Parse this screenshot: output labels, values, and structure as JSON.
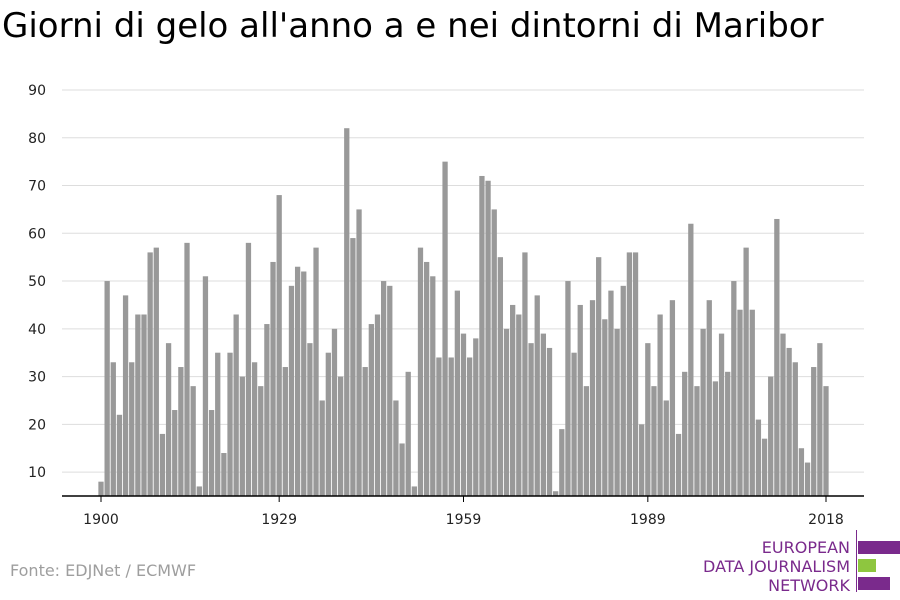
{
  "title": "Giorni di gelo all'anno a e nei dintorni di Maribor",
  "source": "Fonte: EDJNet / ECMWF",
  "logo": {
    "lines": [
      "EUROPEAN",
      "DATA JOURNALISM",
      "NETWORK"
    ],
    "colors": {
      "purple": "#7a2a8c",
      "green": "#8ec63f"
    }
  },
  "colors": {
    "bar": "#999999",
    "grid": "#dddddd",
    "axis": "#000000"
  },
  "chart_data": {
    "type": "bar",
    "x": [
      1900,
      1901,
      1902,
      1903,
      1904,
      1905,
      1906,
      1907,
      1908,
      1909,
      1910,
      1911,
      1912,
      1913,
      1914,
      1915,
      1916,
      1917,
      1918,
      1919,
      1920,
      1921,
      1922,
      1923,
      1924,
      1925,
      1926,
      1927,
      1928,
      1929,
      1930,
      1931,
      1932,
      1933,
      1934,
      1935,
      1936,
      1937,
      1938,
      1939,
      1940,
      1941,
      1942,
      1943,
      1944,
      1945,
      1946,
      1947,
      1948,
      1949,
      1950,
      1951,
      1952,
      1953,
      1954,
      1955,
      1956,
      1957,
      1958,
      1959,
      1960,
      1961,
      1962,
      1963,
      1964,
      1965,
      1966,
      1967,
      1968,
      1969,
      1970,
      1971,
      1972,
      1973,
      1974,
      1975,
      1976,
      1977,
      1978,
      1979,
      1980,
      1981,
      1982,
      1983,
      1984,
      1985,
      1986,
      1987,
      1988,
      1989,
      1990,
      1991,
      1992,
      1993,
      1994,
      1995,
      1996,
      1997,
      1998,
      1999,
      2000,
      2001,
      2002,
      2003,
      2004,
      2005,
      2006,
      2007,
      2008,
      2009,
      2010,
      2011,
      2012,
      2013,
      2014,
      2015,
      2016,
      2017,
      2018
    ],
    "values": [
      8,
      50,
      33,
      22,
      47,
      33,
      43,
      43,
      56,
      57,
      18,
      37,
      23,
      32,
      58,
      28,
      7,
      51,
      23,
      35,
      14,
      35,
      43,
      30,
      58,
      33,
      28,
      41,
      54,
      68,
      32,
      49,
      53,
      52,
      37,
      57,
      25,
      35,
      40,
      30,
      82,
      59,
      65,
      32,
      41,
      43,
      50,
      49,
      25,
      16,
      31,
      7,
      57,
      54,
      51,
      34,
      75,
      34,
      48,
      39,
      34,
      38,
      72,
      71,
      65,
      55,
      40,
      45,
      43,
      56,
      37,
      47,
      39,
      36,
      6,
      19,
      50,
      35,
      45,
      28,
      46,
      55,
      42,
      48,
      40,
      49,
      56,
      56,
      20,
      37,
      28,
      43,
      25,
      46,
      18,
      31,
      62,
      28,
      40,
      46,
      29,
      39,
      31,
      50,
      44,
      57,
      44,
      21,
      17,
      30,
      63,
      39,
      36,
      33,
      15,
      12,
      32,
      37,
      28
    ],
    "xticks": [
      "1900",
      "1929",
      "1959",
      "1989",
      "2018"
    ],
    "xtick_values": [
      1900,
      1929,
      1959,
      1989,
      2018
    ],
    "yticks": [
      "10",
      "20",
      "30",
      "40",
      "50",
      "60",
      "70",
      "80",
      "90"
    ],
    "ylim": [
      5,
      90
    ],
    "grid": true,
    "xlabel": "",
    "ylabel": ""
  }
}
